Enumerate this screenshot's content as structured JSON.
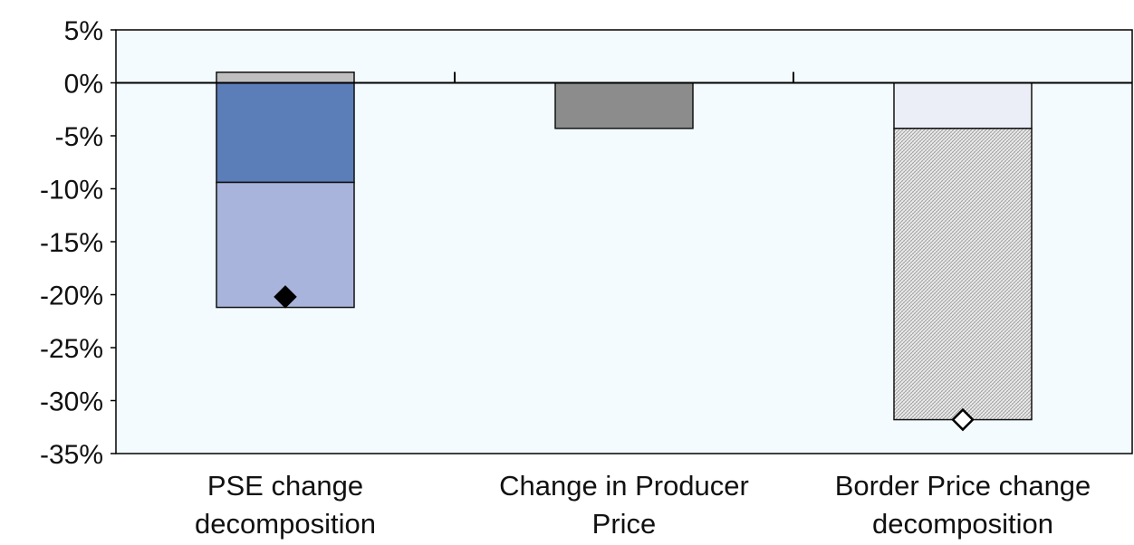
{
  "chart_data": {
    "type": "bar",
    "stacked": true,
    "ylim": [
      -35,
      5
    ],
    "y_ticks": [
      5,
      0,
      -5,
      -10,
      -15,
      -20,
      -25,
      -30,
      -35
    ],
    "y_tick_labels": [
      "5%",
      "0%",
      "-5%",
      "-10%",
      "-15%",
      "-20%",
      "-25%",
      "-30%",
      "-35%"
    ],
    "categories": [
      [
        "PSE change",
        "decomposition"
      ],
      [
        "Change in Producer",
        "Price"
      ],
      [
        "Border Price change",
        "decomposition"
      ]
    ],
    "grid": false,
    "plot_background": "#f3fbfe",
    "bars": [
      {
        "category_index": 0,
        "segments": [
          {
            "from": 0,
            "to": 1.0,
            "color": "#bfbfbf",
            "pattern": "solid"
          },
          {
            "from": 0,
            "to": -9.4,
            "color": "#5b7db8",
            "pattern": "solid"
          },
          {
            "from": -9.4,
            "to": -21.2,
            "color": "#a9b4dc",
            "pattern": "solid"
          }
        ],
        "marker": {
          "value": -20.2,
          "shape": "diamond",
          "fill": "#000000"
        }
      },
      {
        "category_index": 1,
        "segments": [
          {
            "from": 0,
            "to": -4.3,
            "color": "#8c8c8c",
            "pattern": "solid"
          }
        ]
      },
      {
        "category_index": 2,
        "segments": [
          {
            "from": 0,
            "to": -4.3,
            "color": "#ebeef6",
            "pattern": "solid"
          },
          {
            "from": -4.3,
            "to": -31.8,
            "color": "#e4e4e4",
            "pattern": "hatched"
          }
        ],
        "marker": {
          "value": -31.8,
          "shape": "diamond",
          "fill": "#ffffff"
        }
      }
    ]
  }
}
